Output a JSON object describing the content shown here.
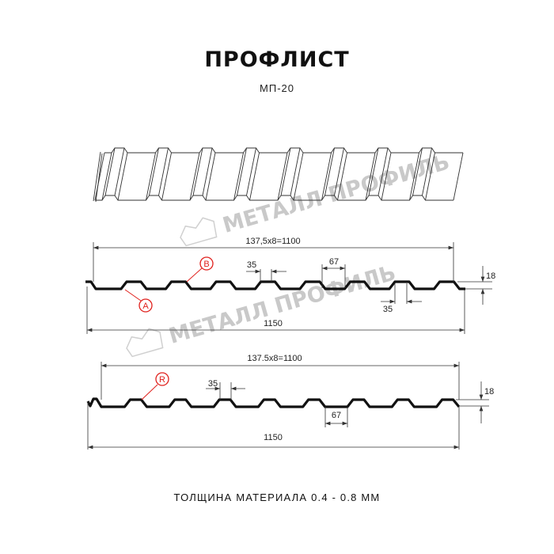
{
  "title": "ПРОФЛИСТ",
  "subtitle": "МП-20",
  "footer": "ТОЛЩИНА МАТЕРИАЛА 0.4 - 0.8 ММ",
  "watermark": "МЕТАЛЛ ПРОФИЛЬ",
  "colors": {
    "profile": "#111111",
    "callout": "#e0201c",
    "watermark": "#c9c9c9"
  },
  "drawing1": {
    "pitch_label": "137,5x8=1100",
    "width_label": "1150",
    "rib_top_label": "35",
    "rib_bottom_label": "35",
    "trough_label": "67",
    "height_label": "18",
    "callouts": [
      "B",
      "A"
    ]
  },
  "drawing2": {
    "pitch_label": "137.5x8=1100",
    "width_label": "1150",
    "rib_top_label": "35",
    "trough_label": "67",
    "height_label": "18",
    "callouts": [
      "R"
    ]
  }
}
